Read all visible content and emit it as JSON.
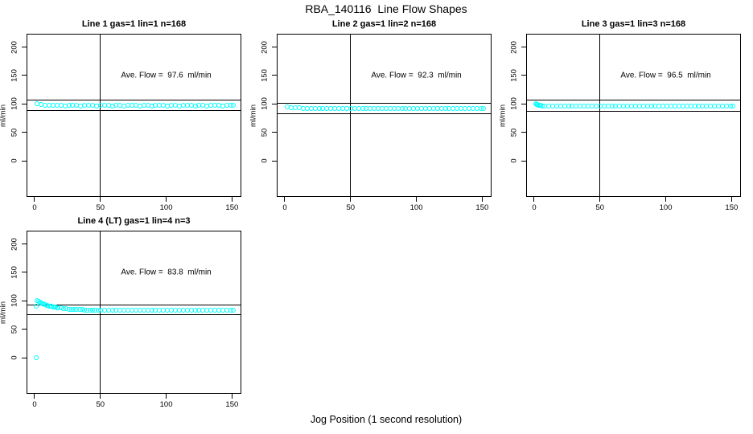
{
  "figure": {
    "title": "RBA_140116  Line Flow Shapes",
    "x_axis_label": "Jog Position (1 second resolution)",
    "background": "#ffffff",
    "frame_color": "#000000",
    "point_color": "#00ffff"
  },
  "axes": {
    "x_ticks": [
      0,
      50,
      100,
      150
    ],
    "y_ticks": [
      0,
      50,
      100,
      150,
      200
    ],
    "y_axis_label": "ml/min",
    "x_range": [
      -5.5,
      156.5
    ],
    "y_range": [
      -62,
      222
    ]
  },
  "chart_data": [
    {
      "type": "scatter",
      "title": "Line 1 gas=1 lin=1 n=168",
      "line": 1,
      "gas": 1,
      "lin": 1,
      "n": 168,
      "annotation": "Ave. Flow =  97.6  ml/min",
      "ave_flow_ml_min": 97.6,
      "vline_x": 50,
      "hlines": [
        107.4,
        87.8
      ],
      "annotation_pos": [
        100,
        150
      ],
      "points": [
        [
          2,
          99.9
        ],
        [
          5,
          98.8
        ],
        [
          8,
          98.2
        ],
        [
          11,
          97.8
        ],
        [
          14,
          97.5
        ],
        [
          17,
          97.2
        ],
        [
          20,
          97.4
        ],
        [
          23,
          96.9
        ],
        [
          26,
          97.3
        ],
        [
          29,
          97.0
        ],
        [
          32,
          97.4
        ],
        [
          35,
          96.8
        ],
        [
          38,
          97.2
        ],
        [
          41,
          97.0
        ],
        [
          44,
          97.3
        ],
        [
          47,
          96.9
        ],
        [
          50,
          97.2
        ],
        [
          53,
          97.0
        ],
        [
          56,
          97.3
        ],
        [
          59,
          96.8
        ],
        [
          62,
          97.1
        ],
        [
          65,
          97.3
        ],
        [
          68,
          96.9
        ],
        [
          71,
          97.2
        ],
        [
          74,
          97.0
        ],
        [
          77,
          97.3
        ],
        [
          80,
          96.8
        ],
        [
          83,
          97.1
        ],
        [
          86,
          97.3
        ],
        [
          89,
          96.9
        ],
        [
          92,
          97.2
        ],
        [
          95,
          97.0
        ],
        [
          98,
          97.3
        ],
        [
          101,
          96.8
        ],
        [
          104,
          97.1
        ],
        [
          107,
          97.3
        ],
        [
          110,
          96.9
        ],
        [
          113,
          97.2
        ],
        [
          116,
          97.0
        ],
        [
          119,
          97.3
        ],
        [
          122,
          96.8
        ],
        [
          125,
          97.1
        ],
        [
          128,
          97.3
        ],
        [
          131,
          96.9
        ],
        [
          134,
          97.2
        ],
        [
          137,
          97.0
        ],
        [
          140,
          97.3
        ],
        [
          143,
          96.8
        ],
        [
          146,
          97.1
        ],
        [
          149,
          97.0
        ],
        [
          151,
          97.2
        ]
      ]
    },
    {
      "type": "scatter",
      "title": "Line 2 gas=1 lin=2 n=168",
      "line": 2,
      "gas": 1,
      "lin": 2,
      "n": 168,
      "annotation": "Ave. Flow =  92.3  ml/min",
      "ave_flow_ml_min": 92.3,
      "vline_x": 50,
      "hlines": [
        101.5,
        83.1
      ],
      "annotation_pos": [
        100,
        150
      ],
      "points": [
        [
          2,
          94.2
        ],
        [
          5,
          93.5
        ],
        [
          8,
          93.1
        ],
        [
          11,
          92.8
        ],
        [
          14,
          92.6
        ],
        [
          17,
          92.4
        ],
        [
          20,
          92.3
        ],
        [
          23,
          92.1
        ],
        [
          26,
          92.2
        ],
        [
          29,
          92.0
        ],
        [
          32,
          92.1
        ],
        [
          35,
          91.9
        ],
        [
          38,
          92.0
        ],
        [
          41,
          92.1
        ],
        [
          44,
          91.9
        ],
        [
          47,
          92.0
        ],
        [
          50,
          91.8
        ],
        [
          53,
          91.9
        ],
        [
          56,
          92.0
        ],
        [
          59,
          91.8
        ],
        [
          62,
          91.9
        ],
        [
          65,
          91.7
        ],
        [
          68,
          91.9
        ],
        [
          71,
          91.8
        ],
        [
          74,
          91.9
        ],
        [
          77,
          91.7
        ],
        [
          80,
          91.8
        ],
        [
          83,
          91.9
        ],
        [
          86,
          91.7
        ],
        [
          89,
          91.8
        ],
        [
          92,
          91.6
        ],
        [
          95,
          91.8
        ],
        [
          98,
          91.7
        ],
        [
          101,
          91.8
        ],
        [
          104,
          91.6
        ],
        [
          107,
          91.7
        ],
        [
          110,
          91.8
        ],
        [
          113,
          91.6
        ],
        [
          116,
          91.7
        ],
        [
          119,
          91.5
        ],
        [
          122,
          91.7
        ],
        [
          125,
          91.6
        ],
        [
          128,
          91.7
        ],
        [
          131,
          91.5
        ],
        [
          134,
          91.6
        ],
        [
          137,
          91.7
        ],
        [
          140,
          91.5
        ],
        [
          143,
          91.6
        ],
        [
          146,
          91.5
        ],
        [
          149,
          91.6
        ],
        [
          151,
          91.5
        ]
      ]
    },
    {
      "type": "scatter",
      "title": "Line 3 gas=1 lin=3 n=168",
      "line": 3,
      "gas": 1,
      "lin": 3,
      "n": 168,
      "annotation": "Ave. Flow =  96.5  ml/min",
      "ave_flow_ml_min": 96.5,
      "vline_x": 50,
      "hlines": [
        106.2,
        86.9
      ],
      "annotation_pos": [
        100,
        150
      ],
      "points": [
        [
          1.5,
          100.4
        ],
        [
          2,
          99.7
        ],
        [
          2.5,
          99.0
        ],
        [
          3,
          98.2
        ],
        [
          4,
          97.5
        ],
        [
          5,
          97.1
        ],
        [
          6,
          96.8
        ],
        [
          8,
          96.6
        ],
        [
          11,
          96.4
        ],
        [
          14,
          96.5
        ],
        [
          17,
          96.3
        ],
        [
          20,
          96.4
        ],
        [
          23,
          96.2
        ],
        [
          26,
          96.4
        ],
        [
          29,
          96.3
        ],
        [
          32,
          96.5
        ],
        [
          35,
          96.2
        ],
        [
          38,
          96.4
        ],
        [
          41,
          96.3
        ],
        [
          44,
          96.4
        ],
        [
          47,
          96.2
        ],
        [
          50,
          96.4
        ],
        [
          53,
          96.3
        ],
        [
          56,
          96.4
        ],
        [
          59,
          96.2
        ],
        [
          62,
          96.3
        ],
        [
          65,
          96.4
        ],
        [
          68,
          96.2
        ],
        [
          71,
          96.3
        ],
        [
          74,
          96.4
        ],
        [
          77,
          96.2
        ],
        [
          80,
          96.3
        ],
        [
          83,
          96.4
        ],
        [
          86,
          96.2
        ],
        [
          89,
          96.3
        ],
        [
          92,
          96.4
        ],
        [
          95,
          96.2
        ],
        [
          98,
          96.3
        ],
        [
          101,
          96.4
        ],
        [
          104,
          96.2
        ],
        [
          107,
          96.3
        ],
        [
          110,
          96.4
        ],
        [
          113,
          96.2
        ],
        [
          116,
          96.3
        ],
        [
          119,
          96.4
        ],
        [
          122,
          96.2
        ],
        [
          125,
          96.3
        ],
        [
          128,
          96.4
        ],
        [
          131,
          96.2
        ],
        [
          134,
          96.3
        ],
        [
          137,
          96.4
        ],
        [
          140,
          96.2
        ],
        [
          143,
          96.3
        ],
        [
          146,
          96.4
        ],
        [
          149,
          96.3
        ],
        [
          151,
          96.4
        ]
      ]
    },
    {
      "type": "scatter",
      "title": "Line 4 (LT) gas=1 lin=4 n=3",
      "line": 4,
      "line_note": "LT",
      "gas": 1,
      "lin": 4,
      "n": 3,
      "annotation": "Ave. Flow =  83.8  ml/min",
      "ave_flow_ml_min": 83.8,
      "vline_x": 50,
      "hlines": [
        92.2,
        75.4
      ],
      "annotation_pos": [
        100,
        150
      ],
      "points": [
        [
          1,
          0
        ],
        [
          1,
          90.3
        ],
        [
          2,
          100.8
        ],
        [
          3,
          99.5
        ],
        [
          4,
          97.9
        ],
        [
          5,
          96.6
        ],
        [
          6,
          95.4
        ],
        [
          7,
          94.4
        ],
        [
          8,
          93.5
        ],
        [
          9,
          92.6
        ],
        [
          10,
          91.9
        ],
        [
          11,
          91.2
        ],
        [
          12,
          90.6
        ],
        [
          13,
          90.0
        ],
        [
          14,
          89.5
        ],
        [
          15,
          89.0
        ],
        [
          16,
          88.6
        ],
        [
          17,
          88.2
        ],
        [
          18,
          87.8
        ],
        [
          20,
          87.1
        ],
        [
          22,
          86.5
        ],
        [
          24,
          86.0
        ],
        [
          26,
          85.6
        ],
        [
          28,
          85.2
        ],
        [
          30,
          84.9
        ],
        [
          32,
          84.7
        ],
        [
          34,
          84.5
        ],
        [
          36,
          84.3
        ],
        [
          38,
          84.1
        ],
        [
          40,
          84.0
        ],
        [
          42,
          83.9
        ],
        [
          44,
          83.8
        ],
        [
          46,
          83.7
        ],
        [
          48,
          83.6
        ],
        [
          50,
          83.6
        ],
        [
          53,
          83.5
        ],
        [
          56,
          83.6
        ],
        [
          59,
          83.4
        ],
        [
          62,
          83.5
        ],
        [
          65,
          83.6
        ],
        [
          68,
          83.4
        ],
        [
          71,
          83.5
        ],
        [
          74,
          83.4
        ],
        [
          77,
          83.5
        ],
        [
          80,
          83.4
        ],
        [
          83,
          83.5
        ],
        [
          86,
          83.4
        ],
        [
          89,
          83.5
        ],
        [
          92,
          83.4
        ],
        [
          95,
          83.5
        ],
        [
          98,
          83.4
        ],
        [
          101,
          83.5
        ],
        [
          104,
          83.4
        ],
        [
          107,
          83.5
        ],
        [
          110,
          83.4
        ],
        [
          113,
          83.5
        ],
        [
          116,
          83.4
        ],
        [
          119,
          83.5
        ],
        [
          122,
          83.4
        ],
        [
          125,
          83.5
        ],
        [
          128,
          83.4
        ],
        [
          131,
          83.5
        ],
        [
          134,
          83.4
        ],
        [
          137,
          83.5
        ],
        [
          140,
          83.4
        ],
        [
          143,
          83.5
        ],
        [
          146,
          83.4
        ],
        [
          149,
          83.5
        ],
        [
          151,
          83.4
        ]
      ]
    }
  ]
}
